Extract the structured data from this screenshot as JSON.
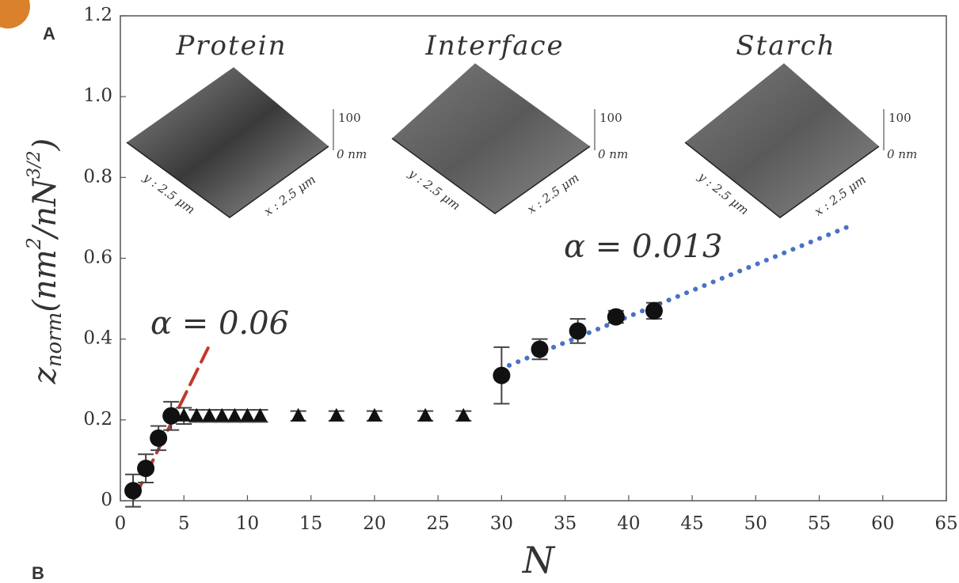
{
  "chart_data": {
    "type": "scatter",
    "panel_labels": [
      "A",
      "B"
    ],
    "xlabel": "N",
    "ylabel_parts": [
      "z",
      "norm",
      "(nm",
      "2",
      "/nN",
      "3/2",
      ")"
    ],
    "xlim": [
      0,
      65
    ],
    "xticks": [
      0,
      5,
      10,
      15,
      20,
      25,
      30,
      35,
      40,
      45,
      50,
      55,
      60,
      65
    ],
    "ylim": [
      0,
      1.2
    ],
    "yticks": [
      0,
      0.2,
      0.4,
      0.6,
      0.8,
      {
        "value": 1,
        "label": "1.0"
      },
      1.2
    ],
    "series": [
      {
        "marker": "circle",
        "color": "#111111",
        "x": [
          1,
          2,
          3,
          4,
          30,
          33,
          36,
          39,
          42
        ],
        "values": [
          0.025,
          0.08,
          0.155,
          0.21,
          0.31,
          0.375,
          0.42,
          0.455,
          0.47
        ],
        "errors": [
          0.04,
          0.035,
          0.03,
          0.035,
          0.07,
          0.025,
          0.03,
          0.015,
          0.02
        ]
      },
      {
        "marker": "triangle",
        "color": "#111111",
        "x": [
          5,
          6,
          7,
          8,
          9,
          10,
          11,
          14,
          17,
          20,
          24,
          27
        ],
        "values": [
          0.21,
          0.21,
          0.21,
          0.21,
          0.21,
          0.21,
          0.21,
          0.21,
          0.21,
          0.21,
          0.21,
          0.21
        ],
        "errors": [
          0.02,
          0.015,
          0.015,
          0.015,
          0.015,
          0.015,
          0.015,
          0.012,
          0.012,
          0.012,
          0.012,
          0.012
        ]
      }
    ],
    "fits": [
      {
        "label": "α = 0.06",
        "color": "#c0392b",
        "style": "dashed",
        "x": [
          1.1,
          6.9
        ],
        "values": [
          0.006,
          0.378
        ]
      },
      {
        "label": "α = 0.013",
        "color": "#4a72c4",
        "style": "dotted",
        "x": [
          30.6,
          57.5
        ],
        "values": [
          0.335,
          0.681
        ]
      }
    ],
    "insets": [
      {
        "title": "Protein",
        "z_top": "100",
        "z_bottom": "0 nm",
        "y_label": "y : 2.5 μm",
        "x_label": "x : 2.5 μm"
      },
      {
        "title": "Interface",
        "z_top": "100",
        "z_bottom": "0 nm",
        "y_label": "y : 2.5 μm",
        "x_label": "x : 2.5 μm"
      },
      {
        "title": "Starch",
        "z_top": "100",
        "z_bottom": "0 nm",
        "y_label": "y : 2.5 μm",
        "x_label": "x : 2.5 μm"
      }
    ]
  }
}
